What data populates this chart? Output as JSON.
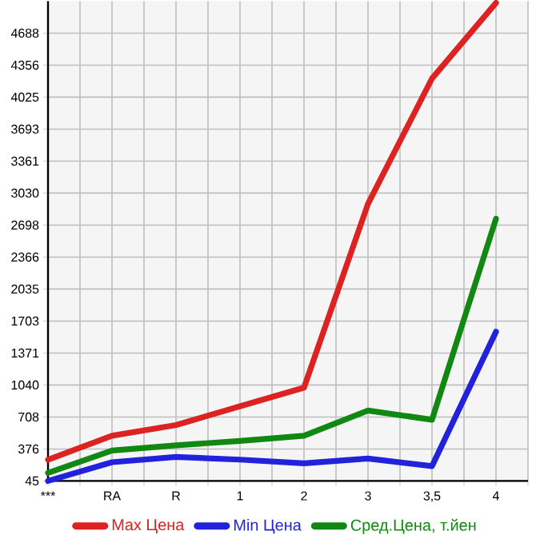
{
  "chart_data": {
    "type": "line",
    "categories": [
      "***",
      "RA",
      "R",
      "1",
      "2",
      "3",
      "3,5",
      "4"
    ],
    "series": [
      {
        "name": "Max Цена",
        "color": "#dd2222",
        "values": [
          266,
          514,
          625,
          819,
          1012,
          2918,
          4218,
          5002
        ]
      },
      {
        "name": "Min Цена",
        "color": "#2222dd",
        "values": [
          45,
          239,
          294,
          266,
          227,
          277,
          199,
          1592
        ]
      },
      {
        "name": "Сред.Цена, т.йен",
        "color": "#118811",
        "values": [
          128,
          360,
          415,
          460,
          514,
          775,
          680,
          2764
        ]
      }
    ],
    "ylim": [
      45,
      5020
    ],
    "yticks": [
      45,
      376,
      708,
      1040,
      1371,
      1703,
      2035,
      2366,
      2698,
      3030,
      3361,
      3693,
      4025,
      4356,
      4688
    ],
    "grid": true,
    "legend": "bottom",
    "marker": "none",
    "line_style": "solid"
  }
}
